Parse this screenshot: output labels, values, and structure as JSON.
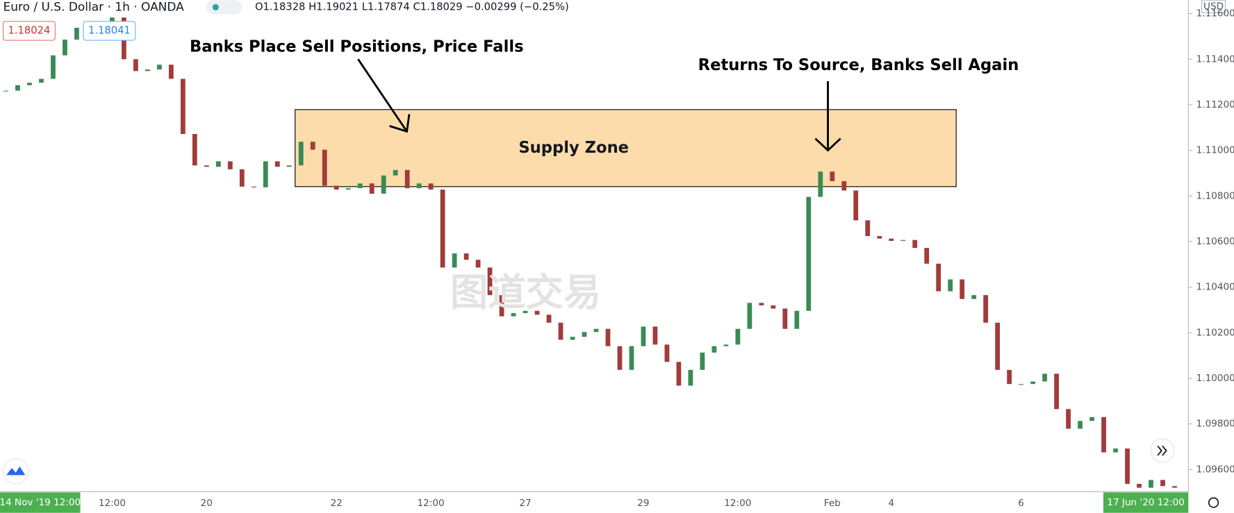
{
  "header": {
    "symbol": "Euro / U.S. Dollar · 1h · OANDA",
    "ohlc": "O1.18328 H1.19021 L1.17874 C1.18029 −0.00299 (−0.25%)",
    "sell_price": "1.18024",
    "buy_price": "1.18041",
    "currency": "USD",
    "start_date": "14 Nov '19   12:00",
    "end_date": "17 Jun '20   12:00",
    "watermark": "图道交易"
  },
  "chart_data": {
    "type": "candlestick",
    "values": [
      1.11262,
      1.11286,
      1.11297,
      1.11314,
      1.11417,
      1.11486,
      1.11538,
      1.11562,
      1.11521,
      1.11583,
      1.114,
      1.11348,
      1.11355,
      1.11376,
      1.11314,
      1.11072,
      1.10934,
      1.10928,
      1.10952,
      1.10917,
      1.10841,
      1.10838,
      1.10952,
      1.10928,
      1.10934,
      1.11038,
      1.11003,
      1.10845,
      1.10828,
      1.10834,
      1.10855,
      1.1081,
      1.1089,
      1.10914,
      1.10834,
      1.10855,
      1.10828,
      1.10486,
      1.10548,
      1.1052,
      1.10486,
      1.10365,
      1.10272,
      1.10286,
      1.10296,
      1.10279,
      1.10244,
      1.10169,
      1.10182,
      1.10203,
      1.10217,
      1.10141,
      1.10037,
      1.10141,
      1.10227,
      1.10148,
      1.10072,
      1.09968,
      1.10037,
      1.10113,
      1.10141,
      1.10148,
      1.10217,
      1.10331,
      1.1032,
      1.10306,
      1.10217,
      1.10296,
      1.10796,
      1.10907,
      1.10865,
      1.10824,
      1.10693,
      1.10624,
      1.10613,
      1.10603,
      1.10607,
      1.10572,
      1.10503,
      1.10382,
      1.10434,
      1.10348,
      1.10365,
      1.10244,
      1.10037,
      1.09975,
      1.09975,
      1.09986,
      1.1002,
      1.09865,
      1.09779,
      1.09813,
      1.0983,
      1.09675,
      1.09692,
      1.09537,
      1.0952,
      1.09554,
      1.09527,
      1.0952
    ],
    "categories": [
      null,
      null,
      null,
      null,
      null,
      null,
      null,
      null,
      null,
      "12:00",
      null,
      null,
      null,
      null,
      null,
      null,
      null,
      "20",
      null,
      null,
      null,
      null,
      null,
      null,
      null,
      null,
      null,
      null,
      "22",
      null,
      null,
      null,
      null,
      null,
      null,
      null,
      "12:00",
      null,
      null,
      null,
      null,
      null,
      null,
      null,
      "27",
      null,
      null,
      null,
      null,
      null,
      null,
      null,
      null,
      null,
      "29",
      null,
      null,
      null,
      null,
      null,
      null,
      null,
      "12:00",
      null,
      null,
      null,
      null,
      null,
      null,
      null,
      "Feb",
      null,
      null,
      null,
      null,
      "4",
      null,
      null,
      null,
      null,
      null,
      null,
      null,
      null,
      null,
      null,
      "6",
      null,
      null,
      null,
      null,
      null,
      null,
      null,
      null,
      null,
      null,
      null,
      null,
      null
    ],
    "up_color": "#3b8a55",
    "down_color": "#a23b3b",
    "ylim": [
      1.09503,
      1.11659
    ],
    "yticks": [
      {
        "value": 1.096,
        "label": "1.09600"
      },
      {
        "value": 1.098,
        "label": "1.09800"
      },
      {
        "value": 1.1,
        "label": "1.10000"
      },
      {
        "value": 1.102,
        "label": "1.10200"
      },
      {
        "value": 1.104,
        "label": "1.10400"
      },
      {
        "value": 1.106,
        "label": "1.10600"
      },
      {
        "value": 1.108,
        "label": "1.10800"
      },
      {
        "value": 1.11,
        "label": "1.11000"
      },
      {
        "value": 1.112,
        "label": "1.11200"
      },
      {
        "value": 1.114,
        "label": "1.11400"
      },
      {
        "value": 1.116,
        "label": "1.11600"
      }
    ],
    "zone": {
      "label": "Supply Zone",
      "top": 1.11179,
      "bottom": 1.10841,
      "start": 25,
      "end": 80,
      "color": "#fddcac"
    },
    "annotations": [
      "Banks Place Sell Positions, Price Falls",
      "Returns To Source, Banks Sell Again"
    ]
  }
}
